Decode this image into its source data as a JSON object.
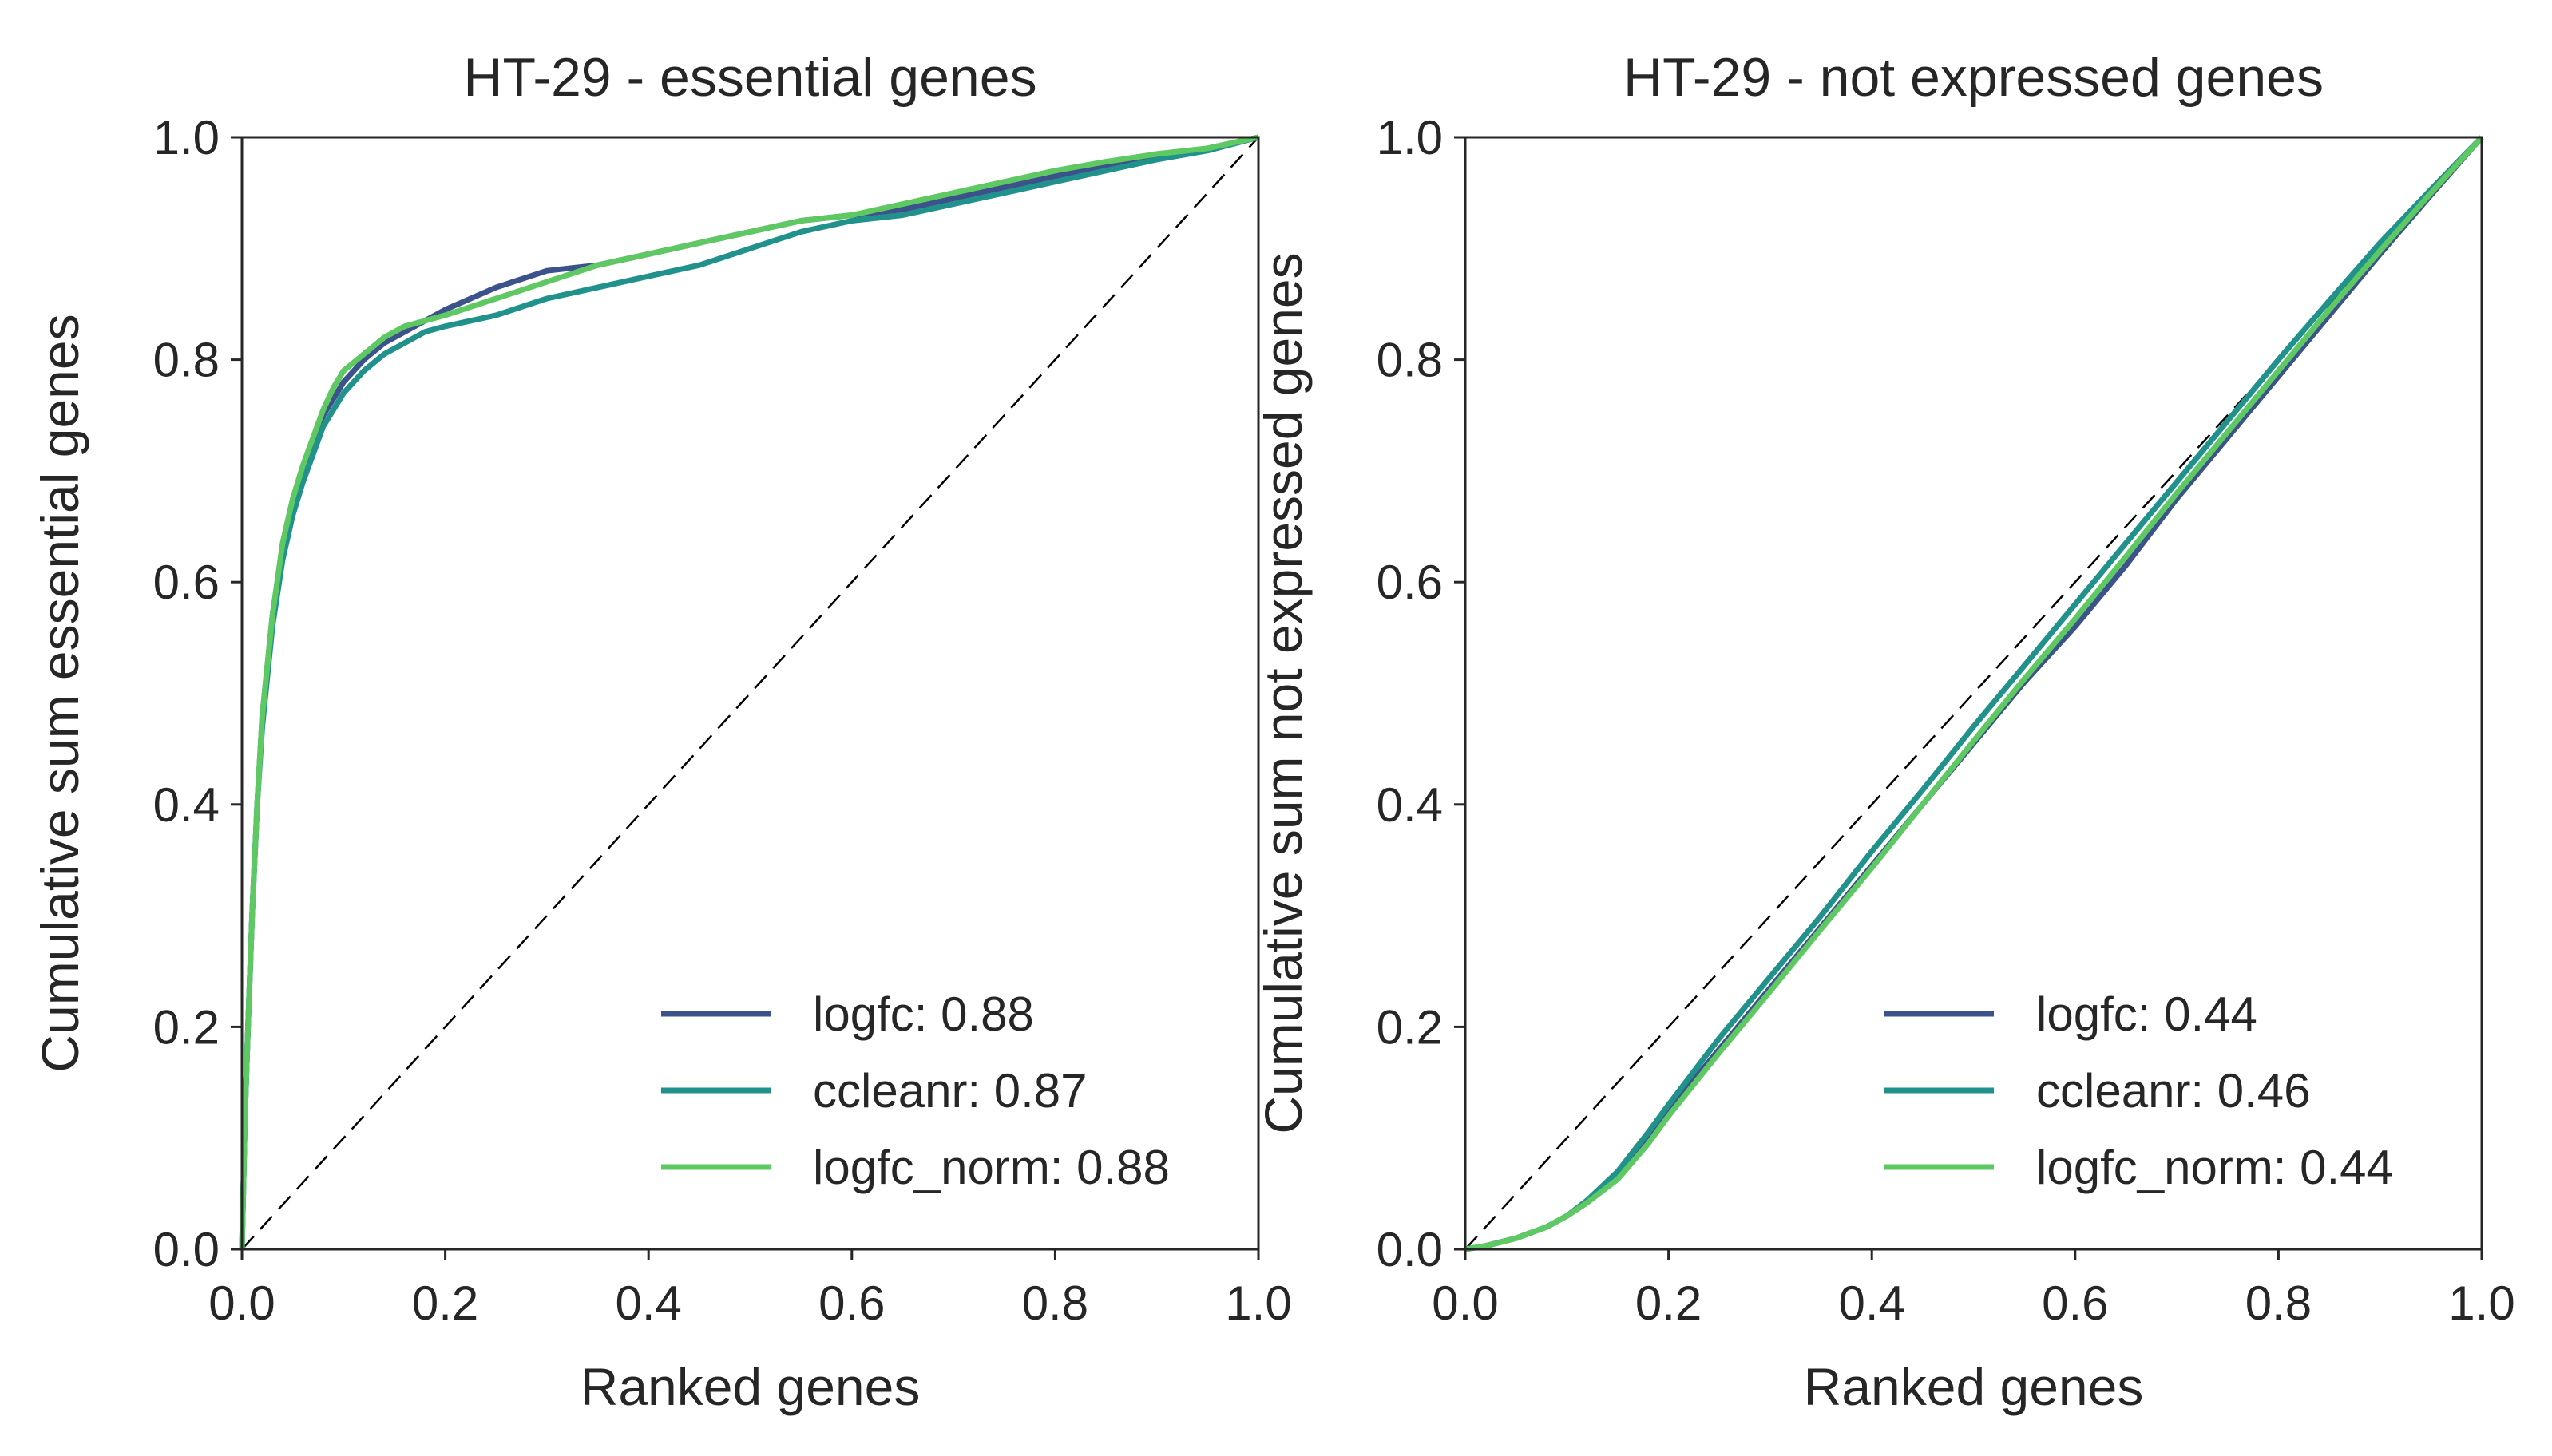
{
  "chart_data": [
    {
      "type": "line",
      "title": "HT-29 - essential genes",
      "xlabel": "Ranked genes",
      "ylabel": "Cumulative sum essential genes",
      "xlim": [
        0,
        1
      ],
      "ylim": [
        0,
        1
      ],
      "xticks": [
        "0.0",
        "0.2",
        "0.4",
        "0.6",
        "0.8",
        "1.0"
      ],
      "yticks": [
        "0.0",
        "0.2",
        "0.4",
        "0.6",
        "0.8",
        "1.0"
      ],
      "grid": false,
      "legend_position": "bottom-right",
      "diagonal": {
        "style": "dashed",
        "color": "#000000"
      },
      "series": [
        {
          "name": "logfc: 0.88",
          "color": "#3b528b",
          "points": [
            [
              0,
              0
            ],
            [
              0.003,
              0.12
            ],
            [
              0.006,
              0.2
            ],
            [
              0.01,
              0.3
            ],
            [
              0.015,
              0.4
            ],
            [
              0.02,
              0.48
            ],
            [
              0.03,
              0.57
            ],
            [
              0.04,
              0.63
            ],
            [
              0.05,
              0.67
            ],
            [
              0.06,
              0.7
            ],
            [
              0.07,
              0.725
            ],
            [
              0.08,
              0.75
            ],
            [
              0.09,
              0.765
            ],
            [
              0.1,
              0.78
            ],
            [
              0.12,
              0.8
            ],
            [
              0.14,
              0.815
            ],
            [
              0.16,
              0.825
            ],
            [
              0.2,
              0.845
            ],
            [
              0.25,
              0.865
            ],
            [
              0.3,
              0.88
            ],
            [
              0.35,
              0.885
            ],
            [
              0.4,
              0.895
            ],
            [
              0.45,
              0.905
            ],
            [
              0.5,
              0.915
            ],
            [
              0.55,
              0.925
            ],
            [
              0.6,
              0.93
            ],
            [
              0.65,
              0.935
            ],
            [
              0.7,
              0.945
            ],
            [
              0.75,
              0.955
            ],
            [
              0.8,
              0.965
            ],
            [
              0.85,
              0.975
            ],
            [
              0.9,
              0.983
            ],
            [
              0.95,
              0.99
            ],
            [
              1,
              1
            ]
          ]
        },
        {
          "name": "ccleanr: 0.87",
          "color": "#21918c",
          "points": [
            [
              0,
              0
            ],
            [
              0.003,
              0.12
            ],
            [
              0.006,
              0.2
            ],
            [
              0.01,
              0.3
            ],
            [
              0.015,
              0.4
            ],
            [
              0.02,
              0.47
            ],
            [
              0.03,
              0.56
            ],
            [
              0.04,
              0.62
            ],
            [
              0.05,
              0.66
            ],
            [
              0.06,
              0.69
            ],
            [
              0.07,
              0.715
            ],
            [
              0.08,
              0.74
            ],
            [
              0.09,
              0.755
            ],
            [
              0.1,
              0.77
            ],
            [
              0.12,
              0.79
            ],
            [
              0.14,
              0.805
            ],
            [
              0.16,
              0.815
            ],
            [
              0.18,
              0.825
            ],
            [
              0.2,
              0.83
            ],
            [
              0.25,
              0.84
            ],
            [
              0.3,
              0.855
            ],
            [
              0.35,
              0.865
            ],
            [
              0.4,
              0.875
            ],
            [
              0.45,
              0.885
            ],
            [
              0.5,
              0.9
            ],
            [
              0.55,
              0.915
            ],
            [
              0.6,
              0.925
            ],
            [
              0.65,
              0.93
            ],
            [
              0.7,
              0.94
            ],
            [
              0.75,
              0.95
            ],
            [
              0.8,
              0.96
            ],
            [
              0.85,
              0.97
            ],
            [
              0.9,
              0.98
            ],
            [
              0.95,
              0.988
            ],
            [
              1,
              1
            ]
          ]
        },
        {
          "name": "logfc_norm: 0.88",
          "color": "#5ec962",
          "points": [
            [
              0,
              0
            ],
            [
              0.003,
              0.12
            ],
            [
              0.006,
              0.2
            ],
            [
              0.01,
              0.3
            ],
            [
              0.015,
              0.4
            ],
            [
              0.02,
              0.48
            ],
            [
              0.03,
              0.57
            ],
            [
              0.04,
              0.635
            ],
            [
              0.05,
              0.675
            ],
            [
              0.06,
              0.705
            ],
            [
              0.07,
              0.73
            ],
            [
              0.08,
              0.755
            ],
            [
              0.09,
              0.775
            ],
            [
              0.1,
              0.79
            ],
            [
              0.12,
              0.805
            ],
            [
              0.14,
              0.82
            ],
            [
              0.16,
              0.83
            ],
            [
              0.2,
              0.84
            ],
            [
              0.25,
              0.855
            ],
            [
              0.3,
              0.87
            ],
            [
              0.35,
              0.885
            ],
            [
              0.4,
              0.895
            ],
            [
              0.45,
              0.905
            ],
            [
              0.5,
              0.915
            ],
            [
              0.55,
              0.925
            ],
            [
              0.6,
              0.93
            ],
            [
              0.65,
              0.94
            ],
            [
              0.7,
              0.95
            ],
            [
              0.75,
              0.96
            ],
            [
              0.8,
              0.97
            ],
            [
              0.85,
              0.978
            ],
            [
              0.9,
              0.985
            ],
            [
              0.95,
              0.99
            ],
            [
              1,
              1
            ]
          ]
        }
      ]
    },
    {
      "type": "line",
      "title": "HT-29 - not expressed genes",
      "xlabel": "Ranked genes",
      "ylabel": "Cumulative sum not expressed genes",
      "xlim": [
        0,
        1
      ],
      "ylim": [
        0,
        1
      ],
      "xticks": [
        "0.0",
        "0.2",
        "0.4",
        "0.6",
        "0.8",
        "1.0"
      ],
      "yticks": [
        "0.0",
        "0.2",
        "0.4",
        "0.6",
        "0.8",
        "1.0"
      ],
      "grid": false,
      "legend_position": "bottom-right",
      "diagonal": {
        "style": "dashed",
        "color": "#000000"
      },
      "series": [
        {
          "name": "logfc: 0.44",
          "color": "#3b528b",
          "points": [
            [
              0,
              0
            ],
            [
              0.02,
              0.003
            ],
            [
              0.05,
              0.01
            ],
            [
              0.08,
              0.02
            ],
            [
              0.1,
              0.03
            ],
            [
              0.12,
              0.042
            ],
            [
              0.15,
              0.065
            ],
            [
              0.18,
              0.1
            ],
            [
              0.2,
              0.125
            ],
            [
              0.25,
              0.18
            ],
            [
              0.3,
              0.235
            ],
            [
              0.35,
              0.29
            ],
            [
              0.4,
              0.345
            ],
            [
              0.45,
              0.4
            ],
            [
              0.5,
              0.455
            ],
            [
              0.55,
              0.51
            ],
            [
              0.6,
              0.56
            ],
            [
              0.65,
              0.615
            ],
            [
              0.7,
              0.675
            ],
            [
              0.75,
              0.73
            ],
            [
              0.8,
              0.785
            ],
            [
              0.85,
              0.84
            ],
            [
              0.9,
              0.895
            ],
            [
              0.95,
              0.948
            ],
            [
              1,
              1
            ]
          ]
        },
        {
          "name": "ccleanr: 0.46",
          "color": "#21918c",
          "points": [
            [
              0,
              0
            ],
            [
              0.02,
              0.003
            ],
            [
              0.05,
              0.01
            ],
            [
              0.08,
              0.02
            ],
            [
              0.1,
              0.03
            ],
            [
              0.12,
              0.044
            ],
            [
              0.15,
              0.07
            ],
            [
              0.18,
              0.105
            ],
            [
              0.2,
              0.13
            ],
            [
              0.25,
              0.19
            ],
            [
              0.3,
              0.245
            ],
            [
              0.35,
              0.3
            ],
            [
              0.4,
              0.358
            ],
            [
              0.45,
              0.413
            ],
            [
              0.5,
              0.47
            ],
            [
              0.55,
              0.525
            ],
            [
              0.6,
              0.58
            ],
            [
              0.65,
              0.635
            ],
            [
              0.7,
              0.69
            ],
            [
              0.75,
              0.745
            ],
            [
              0.8,
              0.8
            ],
            [
              0.85,
              0.853
            ],
            [
              0.9,
              0.905
            ],
            [
              0.95,
              0.953
            ],
            [
              1,
              1
            ]
          ]
        },
        {
          "name": "logfc_norm: 0.44",
          "color": "#5ec962",
          "points": [
            [
              0,
              0
            ],
            [
              0.02,
              0.003
            ],
            [
              0.05,
              0.01
            ],
            [
              0.08,
              0.02
            ],
            [
              0.1,
              0.03
            ],
            [
              0.12,
              0.042
            ],
            [
              0.15,
              0.063
            ],
            [
              0.18,
              0.095
            ],
            [
              0.2,
              0.12
            ],
            [
              0.25,
              0.177
            ],
            [
              0.3,
              0.232
            ],
            [
              0.35,
              0.288
            ],
            [
              0.4,
              0.343
            ],
            [
              0.45,
              0.4
            ],
            [
              0.5,
              0.457
            ],
            [
              0.55,
              0.513
            ],
            [
              0.6,
              0.567
            ],
            [
              0.65,
              0.623
            ],
            [
              0.7,
              0.68
            ],
            [
              0.75,
              0.735
            ],
            [
              0.8,
              0.79
            ],
            [
              0.85,
              0.845
            ],
            [
              0.9,
              0.898
            ],
            [
              0.95,
              0.95
            ],
            [
              1,
              1
            ]
          ]
        }
      ]
    }
  ]
}
